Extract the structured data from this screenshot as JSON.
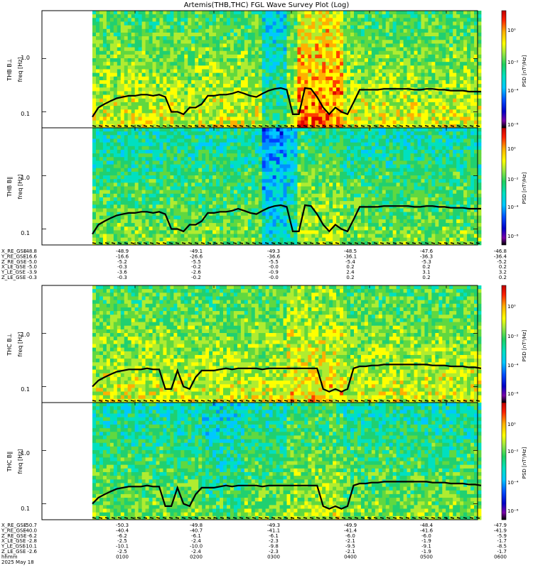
{
  "title": "Artemis(THB,THC) FGL Wave Survey Plot (Log)",
  "colors": {
    "colormap": [
      "#ffffff",
      "#000000",
      "#7a00a8",
      "#0000c8",
      "#0000ff",
      "#0070ff",
      "#00c8ff",
      "#00e0c0",
      "#20d060",
      "#80e040",
      "#d8f000",
      "#ffff00",
      "#ffc000",
      "#ff6000",
      "#ff0000",
      "#c80000"
    ],
    "cutoff_line": "#000000",
    "frame": "#000000"
  },
  "chart_data": [
    {
      "type": "heatmap",
      "probe": "THB",
      "component": "perp",
      "ylabel": "THB B⊥",
      "yunit": "freq [Hz]",
      "yscale": "log",
      "ylim": [
        0.05,
        8
      ],
      "yticks": [
        "1.0",
        "0.1"
      ],
      "zlabel": "PSD [nT²/Hz]",
      "zticks": [
        "10⁰",
        "10⁻²",
        "10⁻⁴",
        "10⁻⁶"
      ],
      "data_start_hhmm": "0018",
      "data_end_hhmm": "0545",
      "cutoff_hz": [
        0.08,
        0.12,
        0.14,
        0.16,
        0.18,
        0.19,
        0.2,
        0.2,
        0.21,
        0.21,
        0.2,
        0.21,
        0.19,
        0.1,
        0.1,
        0.09,
        0.12,
        0.12,
        0.14,
        0.2,
        0.2,
        0.21,
        0.21,
        0.22,
        0.24,
        0.22,
        0.2,
        0.19,
        0.22,
        0.25,
        0.27,
        0.28,
        0.26,
        0.09,
        0.09,
        0.28,
        0.27,
        0.19,
        0.12,
        0.09,
        0.12,
        0.1,
        0.09,
        0.15,
        0.26,
        0.26,
        0.26,
        0.26,
        0.27,
        0.27,
        0.27,
        0.27,
        0.27,
        0.26,
        0.26,
        0.27,
        0.27,
        0.26,
        0.26,
        0.25,
        0.25,
        0.25,
        0.24,
        0.24,
        0.24
      ]
    },
    {
      "type": "heatmap",
      "probe": "THB",
      "component": "parallel",
      "ylabel": "THB B∥",
      "yunit": "freq [Hz]",
      "yscale": "log",
      "ylim": [
        0.05,
        8
      ],
      "yticks": [
        "1.0",
        "0.1"
      ],
      "zlabel": "PSD [nT²/Hz]",
      "zticks": [
        "10⁰",
        "10⁻²",
        "10⁻⁴",
        "10⁻⁶"
      ],
      "data_start_hhmm": "0018",
      "data_end_hhmm": "0545",
      "cutoff_hz": [
        0.08,
        0.12,
        0.14,
        0.16,
        0.18,
        0.19,
        0.2,
        0.2,
        0.21,
        0.21,
        0.2,
        0.21,
        0.19,
        0.1,
        0.1,
        0.09,
        0.12,
        0.12,
        0.14,
        0.2,
        0.2,
        0.21,
        0.21,
        0.22,
        0.24,
        0.22,
        0.2,
        0.19,
        0.22,
        0.25,
        0.27,
        0.28,
        0.26,
        0.09,
        0.09,
        0.28,
        0.27,
        0.19,
        0.12,
        0.09,
        0.12,
        0.1,
        0.09,
        0.15,
        0.26,
        0.26,
        0.26,
        0.26,
        0.27,
        0.27,
        0.27,
        0.27,
        0.27,
        0.26,
        0.26,
        0.27,
        0.27,
        0.26,
        0.26,
        0.25,
        0.25,
        0.25,
        0.24,
        0.24,
        0.24
      ]
    },
    {
      "type": "heatmap",
      "probe": "THC",
      "component": "perp",
      "ylabel": "THC B⊥",
      "yunit": "freq [Hz]",
      "yscale": "log",
      "ylim": [
        0.05,
        8
      ],
      "yticks": [
        "1.0",
        "0.1"
      ],
      "zlabel": "PSD [nT²/Hz]",
      "zticks": [
        "10⁰",
        "10⁻²",
        "10⁻⁴",
        "10⁻⁶"
      ],
      "data_start_hhmm": "0018",
      "data_end_hhmm": "0545",
      "cutoff_hz": [
        0.1,
        0.13,
        0.15,
        0.17,
        0.19,
        0.2,
        0.21,
        0.21,
        0.21,
        0.22,
        0.21,
        0.21,
        0.09,
        0.09,
        0.2,
        0.1,
        0.09,
        0.15,
        0.2,
        0.2,
        0.2,
        0.21,
        0.22,
        0.21,
        0.22,
        0.22,
        0.22,
        0.22,
        0.21,
        0.22,
        0.22,
        0.22,
        0.22,
        0.22,
        0.22,
        0.22,
        0.22,
        0.22,
        0.09,
        0.08,
        0.09,
        0.08,
        0.09,
        0.22,
        0.24,
        0.24,
        0.25,
        0.25,
        0.26,
        0.26,
        0.26,
        0.26,
        0.26,
        0.26,
        0.26,
        0.26,
        0.25,
        0.25,
        0.25,
        0.24,
        0.24,
        0.24,
        0.23,
        0.23,
        0.22
      ]
    },
    {
      "type": "heatmap",
      "probe": "THC",
      "component": "parallel",
      "ylabel": "THC B∥",
      "yunit": "freq [Hz]",
      "yscale": "log",
      "ylim": [
        0.05,
        8
      ],
      "yticks": [
        "1.0",
        "0.1"
      ],
      "zlabel": "PSD [nT²/Hz]",
      "zticks": [
        "10⁰",
        "10⁻²",
        "10⁻⁴",
        "10⁻⁶"
      ],
      "data_start_hhmm": "0018",
      "data_end_hhmm": "0545",
      "cutoff_hz": [
        0.1,
        0.13,
        0.15,
        0.17,
        0.19,
        0.2,
        0.21,
        0.21,
        0.21,
        0.22,
        0.21,
        0.21,
        0.09,
        0.09,
        0.2,
        0.1,
        0.09,
        0.15,
        0.2,
        0.2,
        0.2,
        0.21,
        0.22,
        0.21,
        0.22,
        0.22,
        0.22,
        0.22,
        0.21,
        0.22,
        0.22,
        0.22,
        0.22,
        0.22,
        0.22,
        0.22,
        0.22,
        0.22,
        0.09,
        0.08,
        0.09,
        0.08,
        0.09,
        0.22,
        0.24,
        0.24,
        0.25,
        0.25,
        0.26,
        0.26,
        0.26,
        0.26,
        0.26,
        0.26,
        0.26,
        0.26,
        0.25,
        0.25,
        0.25,
        0.24,
        0.24,
        0.24,
        0.23,
        0.23,
        0.22
      ]
    }
  ],
  "ephemeris_thb": {
    "labels": [
      "X_RE_GSE",
      "Y_RE_GSE",
      "Z_RE_GSE",
      "X_LE_GSE",
      "Y_LE_GSE",
      "Z_LE_GSE"
    ],
    "first_column": [
      "-48.8",
      "-16.6",
      "-5.0",
      "-5.0",
      "-3.9",
      "-0.3"
    ],
    "tick_columns": [
      [
        "-48.9",
        "-16.6",
        "-5.2",
        "-0.3",
        "-3.6",
        "-0.3"
      ],
      [
        "-49.1",
        "-26.6",
        "-5.5",
        "-0.2",
        "-2.6",
        "-0.2"
      ],
      [
        "-49.3",
        "-36.6",
        "-5.5",
        "-0.0",
        "-0.9",
        "-0.0"
      ],
      [
        "-48.5",
        "-36.1",
        "-5.4",
        "0.2",
        "2.4",
        "0.2"
      ],
      [
        "-47.6",
        "-36.3",
        "-5.3",
        "0.2",
        "3.1",
        "0.2"
      ]
    ],
    "last_column": [
      "-46.8",
      "-36.4",
      "-5.2",
      "0.2",
      "3.2",
      "0.2"
    ]
  },
  "ephemeris_thc": {
    "labels": [
      "X_RE_GSE",
      "Y_RE_GSE",
      "Z_RE_GSE",
      "X_LE_GSE",
      "Y_LE_GSE",
      "Z_LE_GSE",
      "hhmm",
      "2025 May 18"
    ],
    "first_column": [
      "-50.7",
      "-40.0",
      "-6.2",
      "-2.8",
      "-10.1",
      "-2.6",
      "",
      ""
    ],
    "tick_columns": [
      [
        "-50.3",
        "-40.4",
        "-6.2",
        "-2.5",
        "-10.1",
        "-2.5",
        "0100",
        ""
      ],
      [
        "-49.8",
        "-40.7",
        "-6.1",
        "-2.4",
        "-10.0",
        "-2.4",
        "0200",
        ""
      ],
      [
        "-49.3",
        "-41.1",
        "-6.1",
        "-2.3",
        "-9.8",
        "-2.3",
        "0300",
        ""
      ],
      [
        "-49.9",
        "-41.4",
        "-6.0",
        "-2.1",
        "-9.5",
        "-2.1",
        "0400",
        ""
      ],
      [
        "-48.4",
        "-41.6",
        "-6.0",
        "-1.9",
        "-9.1",
        "-1.9",
        "0500",
        ""
      ]
    ],
    "last_column": [
      "-47.9",
      "-41.9",
      "-5.9",
      "-1.7",
      "-8.5",
      "-1.7",
      "0600",
      ""
    ]
  }
}
